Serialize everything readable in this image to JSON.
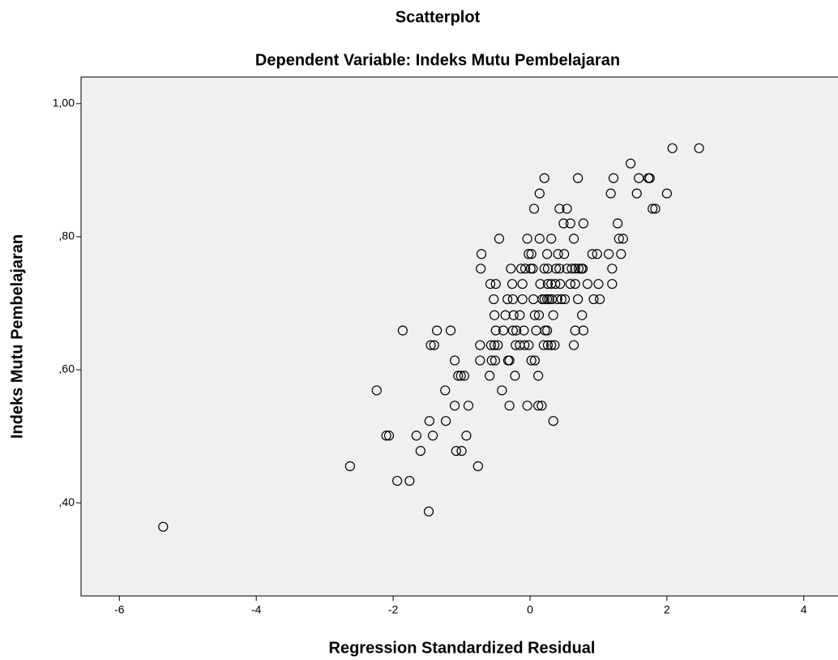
{
  "chart_data": {
    "type": "scatter",
    "title": "Scatterplot",
    "subtitle": "Dependent Variable: Indeks Mutu Pembelajaran",
    "x_label": "Regression Standardized Residual",
    "y_label": "Indeks Mutu Pembelajaran",
    "xlim": [
      -6.56,
      4.5
    ],
    "ylim": [
      0.26,
      1.04
    ],
    "xticks": [
      -6,
      -4,
      -2,
      0,
      2,
      4
    ],
    "yticks": [
      {
        "value": 0.4,
        "label": ",40"
      },
      {
        "value": 0.6,
        "label": ",60"
      },
      {
        "value": 0.8,
        "label": ",80"
      },
      {
        "value": 1.0,
        "label": "1,00"
      }
    ],
    "color": "#000000",
    "background": "#f0f0f0",
    "x": [
      -5.36,
      -2.63,
      -2.24,
      -2.1,
      -2.06,
      -1.94,
      -1.86,
      -1.76,
      -1.66,
      -1.6,
      -1.48,
      -1.47,
      -1.42,
      -1.45,
      -1.4,
      -1.36,
      -1.24,
      -1.23,
      -1.16,
      -1.1,
      -1.1,
      -1.08,
      -1.0,
      -1.05,
      -1.01,
      -0.96,
      -0.93,
      -0.9,
      -0.76,
      -0.73,
      -0.73,
      -0.72,
      -0.71,
      -0.59,
      -0.58,
      -0.5,
      -0.57,
      -0.52,
      -0.47,
      -0.56,
      -0.51,
      -0.53,
      -0.52,
      -0.5,
      -0.45,
      -0.41,
      -0.39,
      -0.36,
      -0.32,
      -0.3,
      -0.33,
      -0.25,
      -0.3,
      -0.28,
      -0.26,
      -0.25,
      -0.2,
      -0.24,
      -0.22,
      -0.21,
      -0.15,
      -0.15,
      -0.13,
      -0.07,
      -0.11,
      -0.11,
      -0.09,
      -0.08,
      -0.02,
      -0.04,
      -0.04,
      -0.02,
      0.02,
      0.01,
      0.04,
      0.02,
      0.07,
      0.05,
      0.06,
      0.07,
      0.13,
      0.09,
      0.12,
      0.17,
      0.12,
      0.14,
      0.14,
      0.15,
      0.18,
      0.21,
      0.25,
      0.2,
      0.26,
      0.21,
      0.21,
      0.26,
      0.22,
      0.25,
      0.25,
      0.26,
      0.31,
      0.37,
      0.28,
      0.32,
      0.31,
      0.31,
      0.36,
      0.34,
      0.34,
      0.38,
      0.43,
      0.4,
      0.46,
      0.51,
      0.41,
      0.43,
      0.54,
      0.44,
      0.49,
      0.5,
      0.54,
      0.59,
      0.59,
      0.66,
      0.61,
      0.66,
      0.71,
      0.75,
      0.77,
      0.64,
      0.64,
      0.66,
      0.78,
      0.7,
      0.7,
      0.76,
      0.78,
      0.84,
      0.91,
      0.93,
      1.02,
      0.98,
      1.0,
      1.15,
      1.18,
      1.2,
      1.2,
      1.22,
      1.28,
      1.3,
      1.36,
      1.33,
      1.47,
      1.56,
      1.59,
      1.73,
      1.75,
      1.79,
      1.83,
      2.0,
      2.08,
      2.47
    ],
    "y": [
      0.364,
      0.455,
      0.569,
      0.501,
      0.501,
      0.433,
      0.659,
      0.433,
      0.501,
      0.478,
      0.387,
      0.523,
      0.501,
      0.637,
      0.637,
      0.659,
      0.569,
      0.523,
      0.659,
      0.614,
      0.546,
      0.478,
      0.478,
      0.591,
      0.591,
      0.591,
      0.501,
      0.546,
      0.455,
      0.614,
      0.637,
      0.752,
      0.774,
      0.591,
      0.729,
      0.729,
      0.637,
      0.637,
      0.637,
      0.614,
      0.614,
      0.706,
      0.682,
      0.659,
      0.797,
      0.569,
      0.659,
      0.682,
      0.614,
      0.614,
      0.706,
      0.706,
      0.546,
      0.752,
      0.729,
      0.659,
      0.659,
      0.682,
      0.591,
      0.637,
      0.637,
      0.682,
      0.752,
      0.752,
      0.729,
      0.706,
      0.659,
      0.637,
      0.637,
      0.797,
      0.546,
      0.774,
      0.774,
      0.752,
      0.752,
      0.614,
      0.614,
      0.706,
      0.842,
      0.682,
      0.682,
      0.659,
      0.546,
      0.546,
      0.591,
      0.865,
      0.797,
      0.729,
      0.706,
      0.706,
      0.706,
      0.637,
      0.637,
      0.888,
      0.752,
      0.752,
      0.659,
      0.659,
      0.774,
      0.729,
      0.729,
      0.729,
      0.706,
      0.706,
      0.797,
      0.637,
      0.637,
      0.523,
      0.682,
      0.752,
      0.752,
      0.706,
      0.706,
      0.706,
      0.774,
      0.842,
      0.842,
      0.729,
      0.82,
      0.774,
      0.752,
      0.82,
      0.729,
      0.729,
      0.752,
      0.752,
      0.752,
      0.752,
      0.752,
      0.797,
      0.637,
      0.659,
      0.659,
      0.888,
      0.706,
      0.682,
      0.82,
      0.729,
      0.774,
      0.706,
      0.706,
      0.774,
      0.729,
      0.774,
      0.865,
      0.752,
      0.729,
      0.888,
      0.82,
      0.797,
      0.797,
      0.774,
      0.91,
      0.865,
      0.888,
      0.888,
      0.888,
      0.842,
      0.842,
      0.865,
      0.933,
      0.933
    ]
  }
}
